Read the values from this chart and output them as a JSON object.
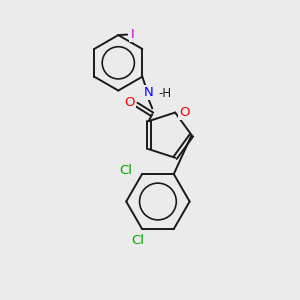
{
  "background_color": "#ebebeb",
  "bond_color": "#1a1a1a",
  "atom_colors": {
    "N": "#0000ff",
    "O": "#ff0000",
    "Cl": "#00aa00",
    "I": "#cc00cc"
  },
  "figsize": [
    3.0,
    3.0
  ],
  "dpi": 100,
  "lw": 1.4,
  "fontsize": 8.5
}
